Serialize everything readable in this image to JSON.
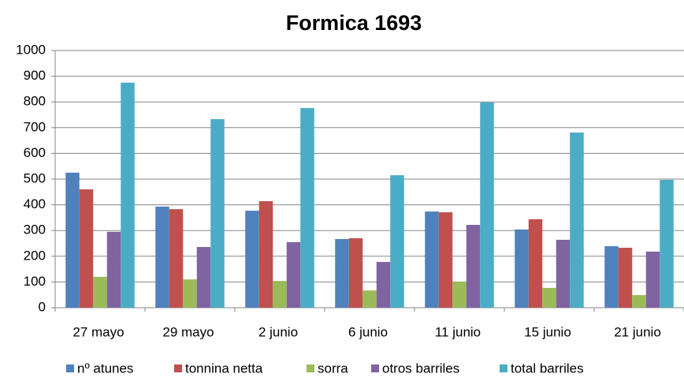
{
  "chart_data": {
    "type": "bar",
    "title": "Formica 1693",
    "categories": [
      "27 mayo",
      "29 mayo",
      "2 junio",
      "6 junio",
      "11 junio",
      "15 junio",
      "21 junio"
    ],
    "series": [
      {
        "name": "nº atunes",
        "color": "#4f81bd",
        "values": [
          525,
          393,
          377,
          267,
          374,
          304,
          239
        ]
      },
      {
        "name": "tonnina netta",
        "color": "#c0504d",
        "values": [
          460,
          383,
          414,
          270,
          371,
          344,
          233
        ]
      },
      {
        "name": "sorra",
        "color": "#9bbb59",
        "values": [
          120,
          110,
          104,
          67,
          101,
          77,
          49
        ]
      },
      {
        "name": "otros barriles",
        "color": "#8064a2",
        "values": [
          295,
          236,
          255,
          178,
          322,
          264,
          218
        ]
      },
      {
        "name": "total barriles",
        "color": "#4bacc6",
        "values": [
          875,
          733,
          776,
          515,
          798,
          681,
          497
        ]
      }
    ],
    "ylim": [
      0,
      1000
    ],
    "yticks": [
      0,
      100,
      200,
      300,
      400,
      500,
      600,
      700,
      800,
      900,
      1000
    ],
    "grid": true,
    "legend": "bottom"
  }
}
